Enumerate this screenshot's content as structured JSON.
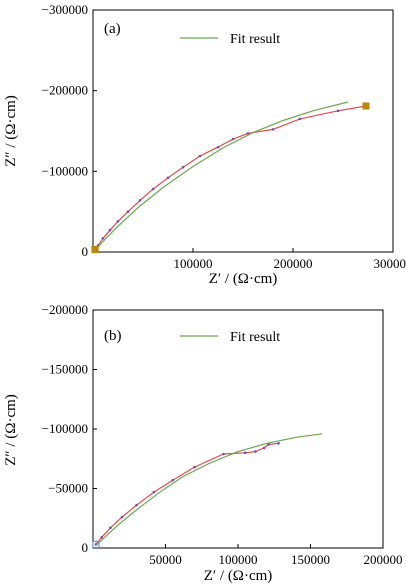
{
  "chart_data": [
    {
      "type": "line",
      "panel_label": "(a)",
      "xlabel": "Z′ / (Ω·cm)",
      "ylabel": "Z″ / (Ω·cm)",
      "xlim": [
        0,
        300000
      ],
      "ylim": [
        0,
        -300000
      ],
      "x_ticks": [
        100000,
        200000,
        300000
      ],
      "x_tick_labels": [
        "100000",
        "200000",
        "300000"
      ],
      "y_ticks": [
        0,
        -100000,
        -200000,
        -300000
      ],
      "y_tick_labels": [
        "0",
        "−100000",
        "−200000",
        "−300000"
      ],
      "legend": {
        "position": "top",
        "entries": [
          "Fit result"
        ]
      },
      "colors": {
        "measured": "#e8484b",
        "fit": "#6aa84f",
        "end_marker": "#b8860b"
      },
      "series": [
        {
          "style": "measured",
          "x": [
            2000,
            5000,
            10000,
            17000,
            25000,
            35000,
            47000,
            60000,
            75000,
            90000,
            107000,
            125000,
            140000,
            155000,
            180000,
            207000,
            245000,
            273000
          ],
          "y": [
            -3000,
            -8000,
            -17000,
            -27000,
            -38000,
            -50000,
            -64000,
            -78000,
            -92000,
            -105000,
            -119000,
            -130000,
            -140000,
            -147000,
            -152000,
            -165000,
            -175000,
            -181000
          ]
        },
        {
          "name": "Fit result",
          "style": "fit",
          "x": [
            2000,
            10000,
            25000,
            45000,
            70000,
            100000,
            130000,
            160000,
            190000,
            220000,
            255000
          ],
          "y": [
            -2000,
            -13000,
            -32000,
            -55000,
            -80000,
            -106000,
            -129000,
            -148000,
            -163000,
            -175000,
            -186000
          ]
        }
      ],
      "start_marker": {
        "x": 2000,
        "y": -3000
      },
      "end_marker": {
        "x": 273000,
        "y": -181000
      }
    },
    {
      "type": "line",
      "panel_label": "(b)",
      "xlabel": "Z′ / (Ω·cm)",
      "ylabel": "Z″ / (Ω·cm)",
      "xlim": [
        0,
        200000
      ],
      "ylim": [
        0,
        -200000
      ],
      "x_ticks": [
        50000,
        100000,
        150000,
        200000
      ],
      "x_tick_labels": [
        "50000",
        "100000",
        "150000",
        "200000"
      ],
      "y_ticks": [
        0,
        -50000,
        -100000,
        -150000,
        -200000
      ],
      "y_tick_labels": [
        "0",
        "−50000",
        "−100000",
        "−150000",
        "−200000"
      ],
      "legend": {
        "position": "top",
        "entries": [
          "Fit result"
        ]
      },
      "colors": {
        "measured": "#e8484b",
        "fit": "#6aa84f",
        "start_marker": "#6f8fd8"
      },
      "series": [
        {
          "style": "measured",
          "x": [
            2000,
            6000,
            12000,
            20000,
            30000,
            42000,
            55000,
            70000,
            90000,
            105000,
            112000,
            118000,
            121000,
            128000
          ],
          "y": [
            -3000,
            -9000,
            -17000,
            -26000,
            -36000,
            -47000,
            -57000,
            -68000,
            -79000,
            -80000,
            -81000,
            -84000,
            -87000,
            -88000
          ]
        },
        {
          "name": "Fit result",
          "style": "fit",
          "x": [
            2000,
            8000,
            18000,
            30000,
            45000,
            62000,
            80000,
            100000,
            120000,
            140000,
            158000
          ],
          "y": [
            -2000,
            -9000,
            -20000,
            -32000,
            -46000,
            -60000,
            -71000,
            -81000,
            -88000,
            -93000,
            -96000
          ]
        }
      ],
      "start_marker": {
        "x": 2000,
        "y": -3000
      }
    }
  ]
}
